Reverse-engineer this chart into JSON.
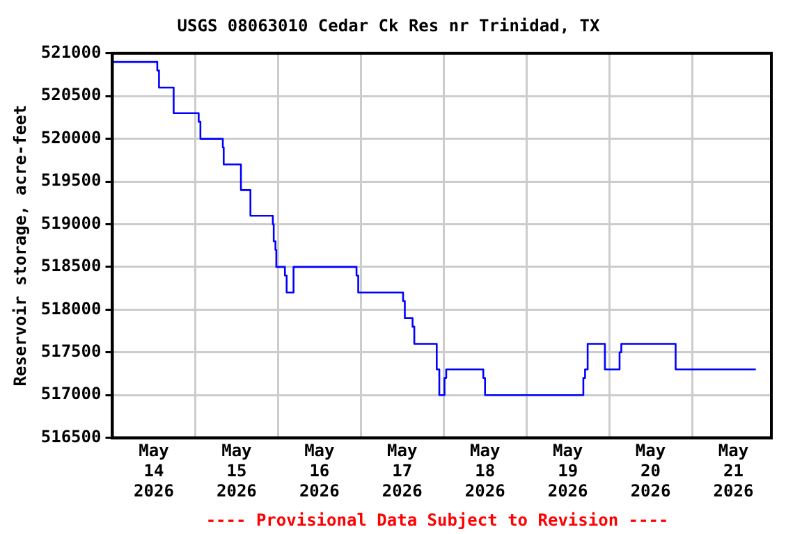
{
  "chart_data": {
    "type": "step",
    "title": "USGS 08063010 Cedar Ck Res nr Trinidad, TX",
    "ylabel": "Reservoir storage, acre-feet",
    "annotations": [
      "---- Provisional Data Subject to Revision ----"
    ],
    "x": [
      "2026-05-14T00:00",
      "2026-05-14T13:00",
      "2026-05-14T13:30",
      "2026-05-14T17:45",
      "2026-05-15T01:00",
      "2026-05-15T01:30",
      "2026-05-15T08:00",
      "2026-05-15T08:15",
      "2026-05-15T13:15",
      "2026-05-15T16:00",
      "2026-05-15T22:30",
      "2026-05-15T22:45",
      "2026-05-15T23:15",
      "2026-05-15T23:30",
      "2026-05-16T02:00",
      "2026-05-16T02:30",
      "2026-05-16T04:30",
      "2026-05-16T22:45",
      "2026-05-16T23:15",
      "2026-05-17T12:15",
      "2026-05-17T12:45",
      "2026-05-17T15:00",
      "2026-05-17T15:30",
      "2026-05-17T22:00",
      "2026-05-17T22:45",
      "2026-05-18T00:15",
      "2026-05-18T00:45",
      "2026-05-18T11:30",
      "2026-05-18T12:00",
      "2026-05-19T16:30",
      "2026-05-19T17:00",
      "2026-05-19T17:45",
      "2026-05-19T22:45",
      "2026-05-20T03:00",
      "2026-05-20T03:30",
      "2026-05-20T19:15",
      "2026-05-21T18:30"
    ],
    "series": [
      {
        "color": "#0000ff",
        "values": [
          520900,
          520800,
          520600,
          520300,
          520200,
          520000,
          519900,
          519700,
          519400,
          519100,
          519000,
          518800,
          518700,
          518500,
          518400,
          518200,
          518500,
          518400,
          518200,
          518100,
          517900,
          517800,
          517600,
          517300,
          517000,
          517200,
          517300,
          517200,
          517000,
          517200,
          517300,
          517600,
          517300,
          517500,
          517600,
          517300,
          517300
        ]
      }
    ],
    "xlim": [
      "2026-05-14T00:00",
      "2026-05-21T23:00"
    ],
    "xticks": [
      {
        "value": "2026-05-14T12:00",
        "label": "May\n14\n2026"
      },
      {
        "value": "2026-05-15T00:00",
        "label": null
      },
      {
        "value": "2026-05-15T12:00",
        "label": "May\n15\n2026"
      },
      {
        "value": "2026-05-16T00:00",
        "label": null
      },
      {
        "value": "2026-05-16T12:00",
        "label": "May\n16\n2026"
      },
      {
        "value": "2026-05-17T00:00",
        "label": null
      },
      {
        "value": "2026-05-17T12:00",
        "label": "May\n17\n2026"
      },
      {
        "value": "2026-05-18T00:00",
        "label": null
      },
      {
        "value": "2026-05-18T12:00",
        "label": "May\n18\n2026"
      },
      {
        "value": "2026-05-19T00:00",
        "label": null
      },
      {
        "value": "2026-05-19T12:00",
        "label": "May\n19\n2026"
      },
      {
        "value": "2026-05-20T00:00",
        "label": null
      },
      {
        "value": "2026-05-20T12:00",
        "label": "May\n20\n2026"
      },
      {
        "value": "2026-05-21T00:00",
        "label": null
      },
      {
        "value": "2026-05-21T12:00",
        "label": "May\n21\n2026"
      }
    ],
    "ylim": [
      516500,
      521000
    ],
    "yticks": [
      516500,
      517000,
      517500,
      518000,
      518500,
      519000,
      519500,
      520000,
      520500,
      521000
    ],
    "grid": true,
    "legend": false
  }
}
